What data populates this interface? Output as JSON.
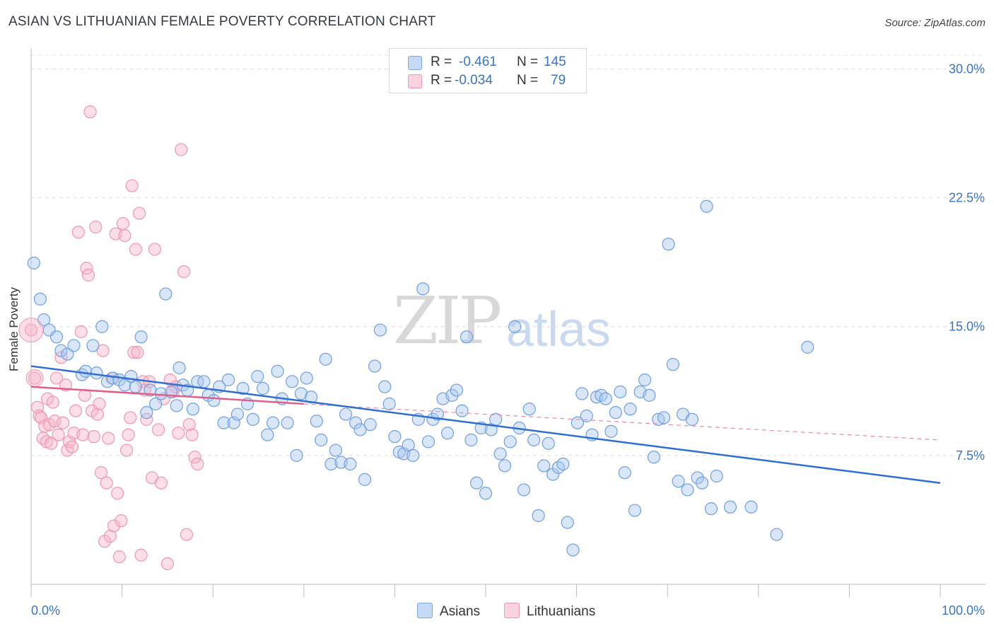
{
  "header": {
    "title": "ASIAN VS LITHUANIAN FEMALE POVERTY CORRELATION CHART",
    "source": "Source: ZipAtlas.com"
  },
  "watermark": {
    "zip": "ZIP",
    "atlas": "atlas"
  },
  "legend_top": {
    "rows": [
      {
        "r_label": "R =",
        "r_value": "-0.461",
        "n_label": "N =",
        "n_value": "145",
        "color": "#a9c8f0"
      },
      {
        "r_label": "R =",
        "r_value": "-0.034",
        "n_label": "N =",
        "n_value": "79",
        "color": "#f7b6c9"
      }
    ]
  },
  "legend_bottom": [
    {
      "label": "Asians",
      "color": "#a9c8f0"
    },
    {
      "label": "Lithuanians",
      "color": "#f7b6c9"
    }
  ],
  "chart_data": {
    "type": "scatter",
    "title": "ASIAN VS LITHUANIAN FEMALE POVERTY CORRELATION CHART",
    "xlabel": "",
    "ylabel": "Female Poverty",
    "xlim": [
      0,
      100
    ],
    "ylim": [
      0,
      30.8
    ],
    "x_tick_labels": [
      "0.0%",
      "100.0%"
    ],
    "y_ticks": [
      7.5,
      15.0,
      22.5,
      30.0
    ],
    "y_tick_labels": [
      "7.5%",
      "15.0%",
      "22.5%",
      "30.0%"
    ],
    "grid": true,
    "legend_position": "top-center",
    "colors": {
      "asians": "#a9c8f0",
      "asians_line": "#2f6fd1",
      "lithuanians": "#f7b6c9",
      "lithuanians_line": "#e0608a"
    },
    "series": [
      {
        "name": "Asians",
        "trend": {
          "x": [
            0,
            100
          ],
          "y": [
            12.7,
            5.9
          ]
        },
        "points": [
          [
            0.3,
            18.7
          ],
          [
            1,
            16.6
          ],
          [
            1.4,
            15.4
          ],
          [
            2,
            14.8
          ],
          [
            2.8,
            14.4
          ],
          [
            3.3,
            13.6
          ],
          [
            4,
            13.4
          ],
          [
            4.7,
            13.9
          ],
          [
            5.6,
            12.2
          ],
          [
            6,
            12.4
          ],
          [
            6.8,
            13.9
          ],
          [
            7.2,
            12.3
          ],
          [
            7.8,
            15.0
          ],
          [
            8.4,
            11.8
          ],
          [
            9,
            12.0
          ],
          [
            9.7,
            11.9
          ],
          [
            10.3,
            11.6
          ],
          [
            11,
            12.1
          ],
          [
            11.5,
            11.5
          ],
          [
            12.1,
            14.4
          ],
          [
            12.7,
            10.0
          ],
          [
            13.1,
            11.3
          ],
          [
            13.7,
            10.5
          ],
          [
            14.3,
            11.1
          ],
          [
            14.8,
            16.9
          ],
          [
            15.4,
            11.2
          ],
          [
            16,
            10.4
          ],
          [
            16.3,
            12.6
          ],
          [
            16.7,
            11.6
          ],
          [
            17.2,
            11.3
          ],
          [
            17.8,
            10.2
          ],
          [
            18.3,
            11.8
          ],
          [
            19,
            11.8
          ],
          [
            19.5,
            11.0
          ],
          [
            20.1,
            10.7
          ],
          [
            20.7,
            11.5
          ],
          [
            21.2,
            9.4
          ],
          [
            21.7,
            11.9
          ],
          [
            22.3,
            9.4
          ],
          [
            22.7,
            9.9
          ],
          [
            23.3,
            11.4
          ],
          [
            23.8,
            10.5
          ],
          [
            24.4,
            9.6
          ],
          [
            24.9,
            12.1
          ],
          [
            25.5,
            11.4
          ],
          [
            26,
            8.7
          ],
          [
            26.6,
            9.4
          ],
          [
            27.1,
            12.4
          ],
          [
            27.6,
            10.8
          ],
          [
            28.2,
            9.4
          ],
          [
            28.7,
            11.8
          ],
          [
            29.2,
            7.5
          ],
          [
            29.7,
            11.1
          ],
          [
            30.3,
            12.0
          ],
          [
            30.8,
            10.9
          ],
          [
            31.4,
            9.5
          ],
          [
            31.9,
            8.4
          ],
          [
            32.4,
            13.1
          ],
          [
            33,
            7.0
          ],
          [
            33.5,
            7.8
          ],
          [
            34.1,
            7.1
          ],
          [
            34.6,
            9.9
          ],
          [
            35.1,
            7.0
          ],
          [
            35.7,
            9.4
          ],
          [
            36.2,
            9.0
          ],
          [
            36.7,
            6.1
          ],
          [
            37.3,
            9.3
          ],
          [
            37.8,
            12.7
          ],
          [
            38.4,
            14.8
          ],
          [
            38.9,
            11.5
          ],
          [
            39.4,
            10.5
          ],
          [
            40,
            8.6
          ],
          [
            40.5,
            7.7
          ],
          [
            41,
            7.6
          ],
          [
            41.5,
            8.1
          ],
          [
            42,
            7.5
          ],
          [
            42.6,
            9.6
          ],
          [
            43.1,
            17.2
          ],
          [
            43.7,
            8.3
          ],
          [
            44.2,
            9.6
          ],
          [
            44.7,
            9.9
          ],
          [
            45.3,
            10.8
          ],
          [
            45.8,
            8.8
          ],
          [
            46.3,
            11.0
          ],
          [
            46.8,
            11.3
          ],
          [
            47.4,
            10.1
          ],
          [
            47.9,
            14.4
          ],
          [
            48.4,
            8.4
          ],
          [
            49,
            5.9
          ],
          [
            49.5,
            9.1
          ],
          [
            50,
            5.3
          ],
          [
            50.6,
            9.0
          ],
          [
            51.1,
            9.6
          ],
          [
            51.6,
            7.6
          ],
          [
            52.1,
            6.9
          ],
          [
            52.7,
            8.3
          ],
          [
            53.2,
            15.0
          ],
          [
            53.7,
            9.1
          ],
          [
            54.2,
            5.5
          ],
          [
            54.8,
            10.2
          ],
          [
            55.3,
            8.4
          ],
          [
            55.8,
            4.0
          ],
          [
            56.4,
            6.9
          ],
          [
            56.9,
            8.2
          ],
          [
            57.4,
            6.4
          ],
          [
            58,
            6.8
          ],
          [
            58.5,
            7.0
          ],
          [
            59,
            3.6
          ],
          [
            59.6,
            2.0
          ],
          [
            60.1,
            9.4
          ],
          [
            60.6,
            11.1
          ],
          [
            61.1,
            9.8
          ],
          [
            61.7,
            8.7
          ],
          [
            62.2,
            10.9
          ],
          [
            62.7,
            11.0
          ],
          [
            63.2,
            10.8
          ],
          [
            63.8,
            8.9
          ],
          [
            64.3,
            10.0
          ],
          [
            64.8,
            11.2
          ],
          [
            65.3,
            6.5
          ],
          [
            65.9,
            10.2
          ],
          [
            66.4,
            4.3
          ],
          [
            67,
            11.2
          ],
          [
            67.5,
            11.9
          ],
          [
            68,
            11.0
          ],
          [
            68.5,
            7.4
          ],
          [
            69,
            9.6
          ],
          [
            69.6,
            9.7
          ],
          [
            70.1,
            19.8
          ],
          [
            70.6,
            12.8
          ],
          [
            71.2,
            6.0
          ],
          [
            71.7,
            9.9
          ],
          [
            72.2,
            5.5
          ],
          [
            72.7,
            9.6
          ],
          [
            73.3,
            6.2
          ],
          [
            73.8,
            5.9
          ],
          [
            74.3,
            22.0
          ],
          [
            74.8,
            4.4
          ],
          [
            75.4,
            6.3
          ],
          [
            76.9,
            4.5
          ],
          [
            79.2,
            4.5
          ],
          [
            82,
            2.9
          ],
          [
            85.4,
            13.8
          ]
        ]
      },
      {
        "name": "Lithuanians",
        "trend": {
          "x": [
            0,
            30
          ],
          "y": [
            11.5,
            10.5
          ]
        },
        "trend_dashed": {
          "x": [
            30,
            100
          ],
          "y": [
            10.5,
            8.4
          ]
        },
        "points": [
          [
            0,
            14.8
          ],
          [
            0.4,
            12.0
          ],
          [
            0.7,
            10.3
          ],
          [
            0.9,
            9.8
          ],
          [
            1.1,
            9.7
          ],
          [
            1.3,
            8.5
          ],
          [
            1.5,
            9.2
          ],
          [
            1.7,
            8.3
          ],
          [
            1.8,
            10.8
          ],
          [
            2,
            9.3
          ],
          [
            2.2,
            8.2
          ],
          [
            2.4,
            10.6
          ],
          [
            2.6,
            9.5
          ],
          [
            2.8,
            12.0
          ],
          [
            3,
            8.7
          ],
          [
            3.3,
            13.2
          ],
          [
            3.5,
            9.4
          ],
          [
            3.8,
            11.6
          ],
          [
            4,
            7.8
          ],
          [
            4.2,
            8.3
          ],
          [
            4.5,
            8.0
          ],
          [
            4.7,
            8.8
          ],
          [
            4.9,
            10.1
          ],
          [
            5.2,
            20.5
          ],
          [
            5.5,
            14.7
          ],
          [
            5.7,
            8.7
          ],
          [
            5.9,
            11.0
          ],
          [
            6.1,
            18.4
          ],
          [
            6.3,
            18.0
          ],
          [
            6.5,
            27.5
          ],
          [
            6.7,
            10.1
          ],
          [
            6.9,
            8.6
          ],
          [
            7.1,
            20.8
          ],
          [
            7.3,
            9.9
          ],
          [
            7.5,
            10.5
          ],
          [
            7.7,
            6.5
          ],
          [
            7.9,
            13.6
          ],
          [
            8.1,
            2.5
          ],
          [
            8.3,
            5.9
          ],
          [
            8.5,
            8.5
          ],
          [
            8.7,
            2.8
          ],
          [
            8.9,
            12.0
          ],
          [
            9.1,
            3.4
          ],
          [
            9.3,
            20.4
          ],
          [
            9.5,
            5.3
          ],
          [
            9.7,
            1.6
          ],
          [
            9.9,
            3.7
          ],
          [
            10.1,
            21.0
          ],
          [
            10.3,
            20.3
          ],
          [
            10.5,
            7.8
          ],
          [
            10.7,
            8.7
          ],
          [
            10.9,
            9.7
          ],
          [
            11.1,
            23.2
          ],
          [
            11.3,
            13.5
          ],
          [
            11.5,
            19.5
          ],
          [
            11.7,
            13.5
          ],
          [
            11.9,
            21.6
          ],
          [
            12.1,
            1.7
          ],
          [
            12.3,
            11.8
          ],
          [
            12.5,
            11.3
          ],
          [
            12.7,
            9.6
          ],
          [
            13,
            11.8
          ],
          [
            13.3,
            6.2
          ],
          [
            13.6,
            19.5
          ],
          [
            14,
            9.0
          ],
          [
            14.3,
            5.9
          ],
          [
            14.6,
            10.8
          ],
          [
            15,
            1.2
          ],
          [
            15.3,
            11.9
          ],
          [
            15.6,
            11.2
          ],
          [
            15.9,
            11.5
          ],
          [
            16.2,
            8.8
          ],
          [
            16.5,
            25.3
          ],
          [
            16.8,
            18.2
          ],
          [
            17.1,
            2.9
          ],
          [
            17.4,
            9.3
          ],
          [
            17.7,
            8.7
          ],
          [
            18,
            7.4
          ],
          [
            18.3,
            7.0
          ]
        ]
      }
    ]
  }
}
